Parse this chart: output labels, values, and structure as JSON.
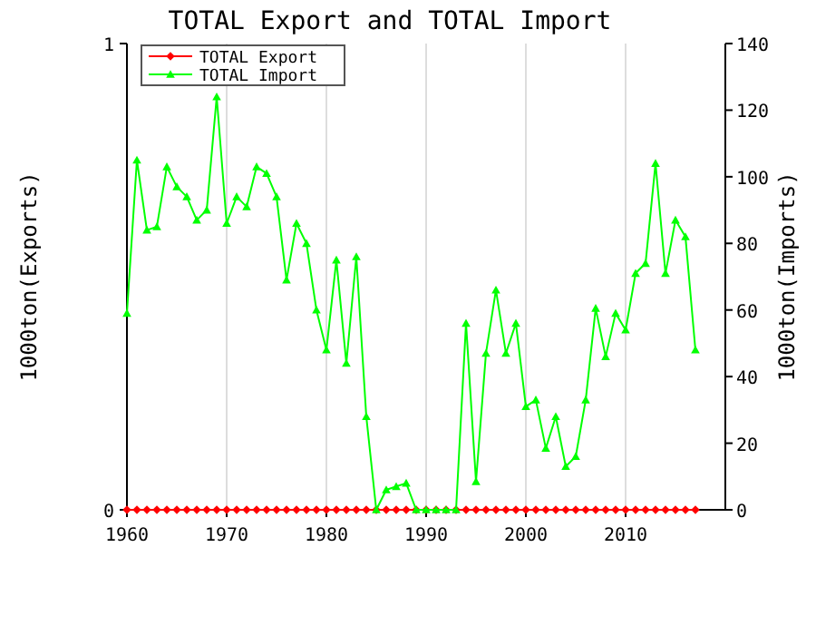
{
  "chart_data": {
    "type": "line",
    "title": "TOTAL Export and TOTAL Import",
    "ylabel": "1000ton(Exports)",
    "y2label": "1000ton(Imports)",
    "x": [
      1960,
      1961,
      1962,
      1963,
      1964,
      1965,
      1966,
      1967,
      1968,
      1969,
      1970,
      1971,
      1972,
      1973,
      1974,
      1975,
      1976,
      1977,
      1978,
      1979,
      1980,
      1981,
      1982,
      1983,
      1984,
      1985,
      1986,
      1987,
      1988,
      1989,
      1990,
      1991,
      1992,
      1993,
      1994,
      1995,
      1996,
      1997,
      1998,
      1999,
      2000,
      2001,
      2002,
      2003,
      2004,
      2005,
      2006,
      2007,
      2008,
      2009,
      2010,
      2011,
      2012,
      2013,
      2014,
      2015,
      2016,
      2017
    ],
    "series": [
      {
        "name": "TOTAL Export",
        "color": "#ff0000",
        "marker": "diamond",
        "values": [
          0,
          0,
          0,
          0,
          0,
          0,
          0,
          0,
          0,
          0,
          0,
          0,
          0,
          0,
          0,
          0,
          0,
          0,
          0,
          0,
          0,
          0,
          0,
          0,
          0,
          0,
          0,
          0,
          0,
          0,
          0,
          0,
          0,
          0,
          0,
          0,
          0,
          0,
          0,
          0,
          0,
          0,
          0,
          0,
          0,
          0,
          0,
          0,
          0,
          0,
          0,
          0,
          0,
          0,
          0,
          0,
          0,
          0
        ]
      },
      {
        "name": "TOTAL Import",
        "color": "#00ff00",
        "marker": "triangle",
        "axis": "y2",
        "values": [
          59,
          105,
          84,
          85,
          103,
          97,
          94,
          87,
          90,
          124,
          86,
          94,
          91,
          103,
          101,
          94,
          69,
          86,
          80,
          60,
          48,
          75,
          44,
          76,
          28,
          0,
          6,
          7,
          8,
          0,
          0,
          0,
          0,
          0,
          56,
          8.5,
          47,
          66,
          47,
          56,
          31,
          33,
          18.5,
          28,
          13,
          16,
          33,
          60.5,
          46,
          59,
          54,
          71,
          74,
          104,
          71,
          87,
          82,
          48
        ]
      }
    ],
    "xlim": [
      1960,
      2020
    ],
    "xticks": [
      1960,
      1970,
      1980,
      1990,
      2000,
      2010
    ],
    "ylim": [
      0,
      1
    ],
    "yticks": [
      0,
      1
    ],
    "y2lim": [
      0,
      140
    ],
    "y2ticks": [
      0,
      20,
      40,
      60,
      80,
      100,
      120,
      140
    ],
    "grid": "x",
    "legend": "top left",
    "line_style": "solid"
  }
}
